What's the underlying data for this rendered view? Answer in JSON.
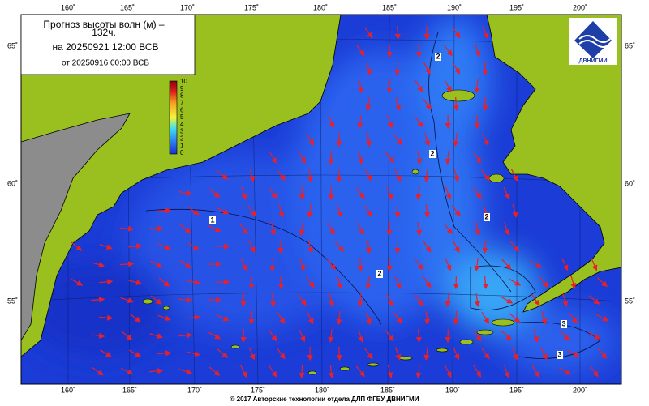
{
  "title_lines": [
    "Прогноз высоты волн (м) –",
    "132ч."
  ],
  "forecast_time": "на 20250921 12:00 ВСВ",
  "issue_time": "от 20250916 00:00 ВСВ",
  "longitude_labels": [
    "160˚",
    "165˚",
    "170˚",
    "175˚",
    "180˚",
    "185˚",
    "190˚",
    "195˚",
    "200˚"
  ],
  "latitude_labels": [
    "65˚",
    "60˚",
    "55˚"
  ],
  "colorbar_labels": [
    10,
    9,
    8,
    7,
    6,
    5,
    4,
    3,
    2,
    1,
    0
  ],
  "contour_labels": [
    "2",
    "2",
    "2",
    "1",
    "2",
    "3",
    "3"
  ],
  "logo_text": "ДВНИГМИ",
  "footer": "© 2017 Авторские технологии отдела ДЛП ФГБУ ДВНИГМИ"
}
